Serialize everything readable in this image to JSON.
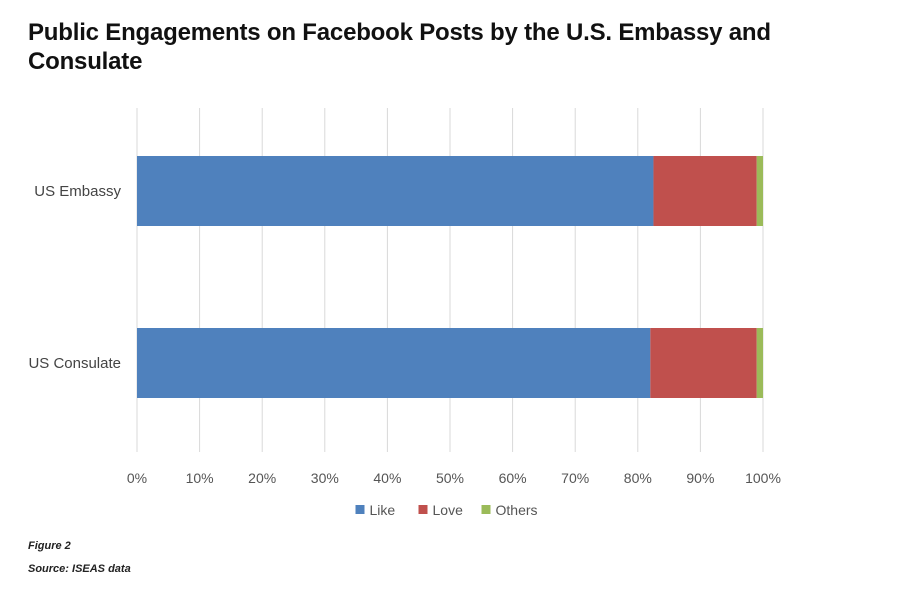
{
  "chart_data": {
    "type": "bar",
    "orientation": "horizontal",
    "stacked": "percent",
    "title": "Public Engagements on Facebook Posts by the U.S. Embassy and Consulate",
    "categories": [
      "US Embassy",
      "US Consulate"
    ],
    "series": [
      {
        "name": "Like",
        "values": [
          82.5,
          82
        ],
        "color": "#4f81bd"
      },
      {
        "name": "Love",
        "values": [
          16.5,
          17
        ],
        "color": "#c0504d"
      },
      {
        "name": "Others",
        "values": [
          1,
          1
        ],
        "color": "#9bbb59"
      }
    ],
    "xlim": [
      0,
      100
    ],
    "xticks": [
      "0%",
      "10%",
      "20%",
      "30%",
      "40%",
      "50%",
      "60%",
      "70%",
      "80%",
      "90%",
      "100%"
    ],
    "xlabel": "",
    "ylabel": "",
    "grid": "vertical",
    "legend": "bottom-center"
  },
  "caption": {
    "figure": "Figure 2",
    "source": "Source: ISEAS data"
  }
}
